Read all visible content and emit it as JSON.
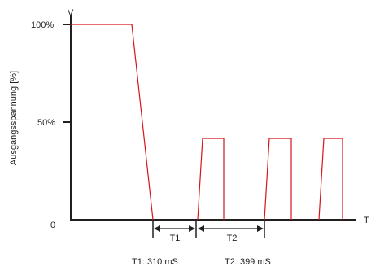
{
  "diagram": {
    "y_axis_symbol": "V",
    "x_axis_symbol": "T",
    "y_axis_label": "Ausgangsspannung [%]",
    "y_ticks": [
      "100%",
      "50%",
      "0"
    ],
    "interval_labels": [
      "T1",
      "T2"
    ],
    "captions": [
      "T1: 310 mS",
      "T2: 399 mS"
    ],
    "colors": {
      "axis": "#231f20",
      "waveform": "#d7141a"
    }
  }
}
